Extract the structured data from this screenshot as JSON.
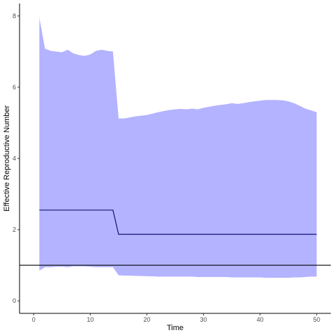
{
  "chart_data": {
    "type": "area",
    "title": "",
    "xlabel": "Time",
    "ylabel": "Effective Reproductive Number",
    "xlim": [
      -2.5,
      52.5
    ],
    "ylim": [
      -0.35,
      8.35
    ],
    "x_ticks": [
      0,
      10,
      20,
      30,
      40,
      50
    ],
    "y_ticks": [
      0,
      2,
      4,
      6,
      8
    ],
    "grid": false,
    "legend": "none",
    "colors": {
      "ribbon": "#b3b3ff",
      "line": "#000066",
      "reference": "#000000"
    },
    "reference_line_y": 1,
    "x": [
      1,
      2,
      3,
      4,
      5,
      6,
      7,
      8,
      9,
      10,
      11,
      12,
      13,
      14,
      15,
      16,
      17,
      18,
      19,
      20,
      21,
      22,
      23,
      24,
      25,
      26,
      27,
      28,
      29,
      30,
      31,
      32,
      33,
      34,
      35,
      36,
      37,
      38,
      39,
      40,
      41,
      42,
      43,
      44,
      45,
      46,
      47,
      48,
      49,
      50
    ],
    "series": [
      {
        "values": [
          2.55,
          2.55,
          2.55,
          2.55,
          2.55,
          2.55,
          2.55,
          2.55,
          2.55,
          2.55,
          2.55,
          2.55,
          2.55,
          2.55,
          1.87,
          1.87,
          1.87,
          1.87,
          1.87,
          1.87,
          1.87,
          1.87,
          1.87,
          1.87,
          1.87,
          1.87,
          1.87,
          1.87,
          1.87,
          1.87,
          1.87,
          1.87,
          1.87,
          1.87,
          1.87,
          1.87,
          1.87,
          1.87,
          1.87,
          1.87,
          1.87,
          1.87,
          1.87,
          1.87,
          1.87,
          1.87,
          1.87,
          1.87,
          1.87,
          1.87
        ]
      }
    ],
    "band": {
      "upper": [
        7.95,
        7.08,
        7.02,
        7.0,
        6.98,
        7.05,
        6.95,
        6.9,
        6.88,
        6.92,
        7.02,
        7.05,
        7.02,
        7.0,
        5.12,
        5.12,
        5.15,
        5.18,
        5.2,
        5.22,
        5.26,
        5.3,
        5.33,
        5.36,
        5.38,
        5.39,
        5.38,
        5.4,
        5.38,
        5.42,
        5.45,
        5.48,
        5.5,
        5.52,
        5.55,
        5.53,
        5.55,
        5.58,
        5.6,
        5.62,
        5.64,
        5.64,
        5.64,
        5.63,
        5.6,
        5.55,
        5.48,
        5.4,
        5.35,
        5.3
      ],
      "lower": [
        0.85,
        0.95,
        0.95,
        0.96,
        0.96,
        0.95,
        0.97,
        0.97,
        0.97,
        0.96,
        0.95,
        0.95,
        0.95,
        0.95,
        0.72,
        0.71,
        0.71,
        0.7,
        0.7,
        0.69,
        0.69,
        0.68,
        0.68,
        0.68,
        0.68,
        0.68,
        0.68,
        0.68,
        0.67,
        0.67,
        0.67,
        0.67,
        0.67,
        0.67,
        0.66,
        0.66,
        0.66,
        0.66,
        0.66,
        0.66,
        0.65,
        0.65,
        0.65,
        0.65,
        0.65,
        0.66,
        0.66,
        0.67,
        0.68,
        0.68
      ]
    }
  }
}
